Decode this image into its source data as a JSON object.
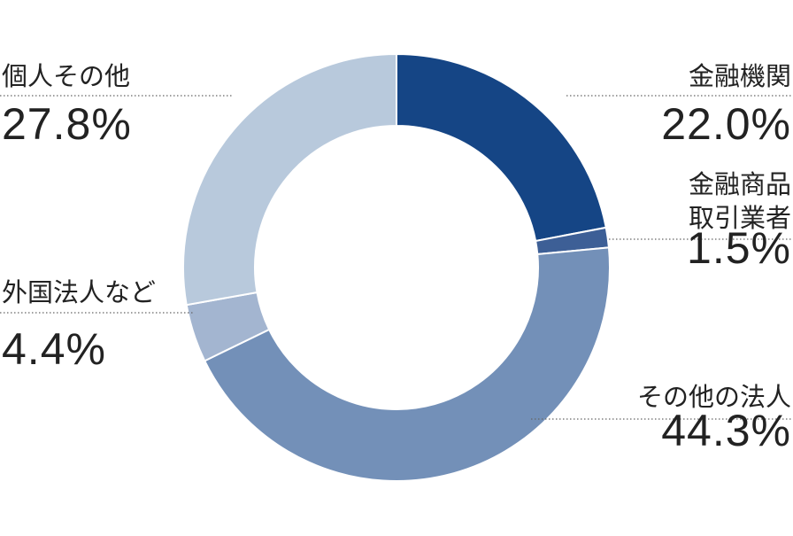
{
  "chart_data": {
    "type": "donut",
    "categories": [
      "金融機関",
      "金融商品\n取引業者",
      "その他の法人",
      "外国法人など",
      "個人その他"
    ],
    "values": [
      22.0,
      1.5,
      44.3,
      4.4,
      27.8
    ],
    "value_labels": [
      "22.0%",
      "1.5%",
      "44.3%",
      "4.4%",
      "27.8%"
    ],
    "colors": [
      "#154585",
      "#3d5f96",
      "#7390b8",
      "#a3b5d0",
      "#b8c9dc"
    ]
  }
}
